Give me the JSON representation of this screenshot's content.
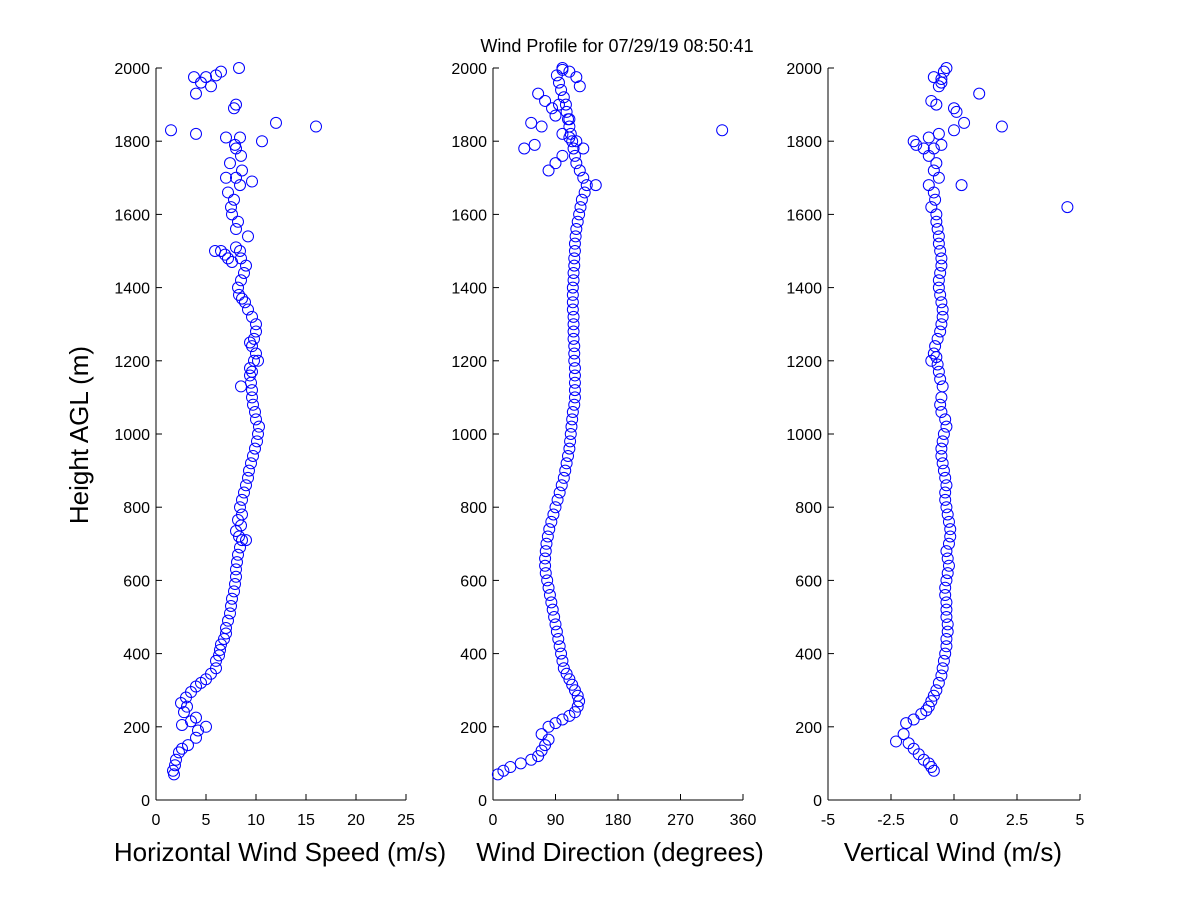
{
  "title": "Wind Profile for  07/29/19 08:50:41",
  "marker_color": "#0000ff",
  "chart_data": [
    {
      "type": "scatter",
      "xlabel": "Horizontal Wind Speed (m/s)",
      "ylabel": "Height AGL (m)",
      "xlim": [
        0,
        25
      ],
      "ylim": [
        0,
        2000
      ],
      "xticks": [
        0,
        5,
        10,
        15,
        20,
        25
      ],
      "xtick_labels": [
        "0",
        "5",
        "10",
        "15",
        "20",
        "25"
      ],
      "yticks": [
        0,
        200,
        400,
        600,
        800,
        1000,
        1200,
        1400,
        1600,
        1800,
        2000
      ],
      "ytick_labels": [
        "0",
        "200",
        "400",
        "600",
        "800",
        "1000",
        "1200",
        "1400",
        "1600",
        "1800",
        "2000"
      ],
      "grid": false,
      "x": [
        1.8,
        1.7,
        1.9,
        2.0,
        2.3,
        2.6,
        3.2,
        4.0,
        4.2,
        2.6,
        5.0,
        3.5,
        4.0,
        2.8,
        3.1,
        2.5,
        3.0,
        3.5,
        4.0,
        4.5,
        5.0,
        5.5,
        6.0,
        6.0,
        6.3,
        6.4,
        6.5,
        6.8,
        7.0,
        7.0,
        7.2,
        7.4,
        7.5,
        7.6,
        7.8,
        7.9,
        8.0,
        8.0,
        8.1,
        8.2,
        8.4,
        8.6,
        8.3,
        8.0,
        9.0,
        8.5,
        8.2,
        8.6,
        8.4,
        8.6,
        8.8,
        9.0,
        9.2,
        9.3,
        9.5,
        9.7,
        9.9,
        10.1,
        10.2,
        10.3,
        10.0,
        9.9,
        9.7,
        9.6,
        9.6,
        9.5,
        9.4,
        9.4,
        8.5,
        9.6,
        9.8,
        10.2,
        10.0,
        9.6,
        9.4,
        9.8,
        10.0,
        10.0,
        9.6,
        9.2,
        8.9,
        8.6,
        8.3,
        8.2,
        8.5,
        8.8,
        9.0,
        8.5,
        8.4,
        7.6,
        7.2,
        6.9,
        6.5,
        5.9,
        8.0,
        9.2,
        8.0,
        8.2,
        7.6,
        7.5,
        7.8,
        7.2,
        8.4,
        8.0,
        7.4,
        8.6,
        9.6,
        7.0,
        8.5,
        8.0,
        7.9,
        8.4,
        7.0,
        10.6,
        4.0,
        1.5,
        12.0,
        16.0,
        8.0,
        7.8,
        4.0,
        4.5,
        5.0,
        6.0,
        5.5,
        3.8,
        6.5,
        8.3
      ],
      "y": [
        70,
        80,
        95,
        110,
        130,
        140,
        150,
        170,
        190,
        205,
        200,
        215,
        225,
        240,
        255,
        265,
        280,
        295,
        310,
        320,
        330,
        345,
        360,
        380,
        395,
        410,
        425,
        440,
        455,
        470,
        490,
        510,
        530,
        550,
        570,
        590,
        610,
        630,
        650,
        670,
        690,
        710,
        720,
        735,
        710,
        750,
        765,
        780,
        800,
        820,
        840,
        860,
        880,
        900,
        920,
        940,
        960,
        980,
        1000,
        1020,
        1040,
        1060,
        1080,
        1100,
        1120,
        1140,
        1160,
        1180,
        1130,
        1170,
        1200,
        1200,
        1220,
        1240,
        1250,
        1260,
        1280,
        1300,
        1320,
        1340,
        1360,
        1370,
        1380,
        1400,
        1420,
        1440,
        1460,
        1480,
        1500,
        1470,
        1480,
        1490,
        1500,
        1500,
        1510,
        1540,
        1560,
        1580,
        1600,
        1620,
        1640,
        1660,
        1680,
        1700,
        1740,
        1720,
        1690,
        1700,
        1760,
        1780,
        1790,
        1810,
        1810,
        1800,
        1820,
        1830,
        1850,
        1840,
        1900,
        1890,
        1930,
        1960,
        1975,
        1980,
        1950,
        1975,
        1990,
        2000
      ]
    },
    {
      "type": "scatter",
      "xlabel": "Wind Direction (degrees)",
      "ylabel": "",
      "xlim": [
        0,
        360
      ],
      "ylim": [
        0,
        2000
      ],
      "xticks": [
        0,
        90,
        180,
        270,
        360
      ],
      "xtick_labels": [
        "0",
        "90",
        "180",
        "270",
        "360"
      ],
      "yticks": [
        0,
        200,
        400,
        600,
        800,
        1000,
        1200,
        1400,
        1600,
        1800,
        2000
      ],
      "ytick_labels": [
        "0",
        "200",
        "400",
        "600",
        "800",
        "1000",
        "1200",
        "1400",
        "1600",
        "1800",
        "2000"
      ],
      "grid": false,
      "x": [
        7,
        15,
        25,
        40,
        55,
        65,
        70,
        75,
        80,
        70,
        80,
        90,
        100,
        110,
        118,
        122,
        124,
        122,
        118,
        114,
        110,
        106,
        102,
        100,
        98,
        96,
        94,
        92,
        90,
        88,
        86,
        84,
        82,
        80,
        78,
        76,
        75,
        75,
        76,
        77,
        79,
        81,
        84,
        87,
        90,
        93,
        96,
        99,
        102,
        104,
        106,
        108,
        110,
        111,
        112,
        113,
        114,
        115,
        117,
        118,
        118,
        118,
        118,
        118,
        117,
        117,
        117,
        116,
        116,
        116,
        116,
        115,
        115,
        115,
        115,
        116,
        116,
        117,
        117,
        118,
        118,
        119,
        120,
        122,
        124,
        126,
        128,
        132,
        135,
        130,
        125,
        120,
        118,
        116,
        114,
        112,
        110,
        108,
        106,
        105,
        102,
        98,
        95,
        92,
        100,
        110,
        120,
        125,
        100,
        90,
        80,
        60,
        45,
        70,
        330,
        100,
        110,
        120,
        130,
        148,
        95,
        85,
        75,
        65,
        55,
        110,
        90,
        100
      ],
      "y": [
        70,
        80,
        90,
        100,
        110,
        120,
        135,
        150,
        165,
        180,
        200,
        210,
        220,
        230,
        240,
        255,
        270,
        285,
        300,
        315,
        330,
        345,
        360,
        380,
        400,
        420,
        440,
        460,
        480,
        500,
        520,
        540,
        560,
        580,
        600,
        620,
        640,
        660,
        680,
        700,
        720,
        740,
        760,
        780,
        800,
        820,
        840,
        860,
        880,
        900,
        920,
        940,
        960,
        980,
        1000,
        1020,
        1040,
        1060,
        1080,
        1100,
        1120,
        1140,
        1160,
        1180,
        1200,
        1220,
        1240,
        1260,
        1280,
        1300,
        1320,
        1340,
        1360,
        1380,
        1400,
        1420,
        1440,
        1460,
        1480,
        1500,
        1520,
        1540,
        1560,
        1580,
        1600,
        1620,
        1640,
        1660,
        1680,
        1700,
        1720,
        1740,
        1760,
        1780,
        1800,
        1820,
        1840,
        1860,
        1880,
        1900,
        1920,
        1940,
        1960,
        1980,
        2000,
        1990,
        1975,
        1950,
        1760,
        1740,
        1720,
        1790,
        1780,
        1840,
        1830,
        1820,
        1810,
        1800,
        1780,
        1680,
        1900,
        1890,
        1910,
        1930,
        1850,
        1860,
        1870,
        1995
      ]
    },
    {
      "type": "scatter",
      "xlabel": "Vertical Wind (m/s)",
      "ylabel": "",
      "xlim": [
        -5,
        5
      ],
      "ylim": [
        0,
        2000
      ],
      "xticks": [
        -5,
        -2.5,
        0,
        2.5,
        5
      ],
      "xtick_labels": [
        "-5",
        "-2.5",
        "0",
        "2.5",
        "5"
      ],
      "yticks": [
        0,
        200,
        400,
        600,
        800,
        1000,
        1200,
        1400,
        1600,
        1800,
        2000
      ],
      "ytick_labels": [
        "0",
        "200",
        "400",
        "600",
        "800",
        "1000",
        "1200",
        "1400",
        "1600",
        "1800",
        "2000"
      ],
      "grid": false,
      "x": [
        -0.8,
        -0.9,
        -1.0,
        -1.2,
        -1.4,
        -1.6,
        -1.8,
        -2.0,
        -2.3,
        -1.9,
        -1.6,
        -1.3,
        -1.1,
        -1.0,
        -0.9,
        -0.8,
        -0.7,
        -0.6,
        -0.5,
        -0.45,
        -0.4,
        -0.35,
        -0.3,
        -0.3,
        -0.25,
        -0.25,
        -0.3,
        -0.3,
        -0.3,
        -0.35,
        -0.35,
        -0.3,
        -0.25,
        -0.2,
        -0.25,
        -0.3,
        -0.2,
        -0.15,
        -0.15,
        -0.2,
        -0.25,
        -0.3,
        -0.35,
        -0.35,
        -0.3,
        -0.35,
        -0.4,
        -0.45,
        -0.5,
        -0.5,
        -0.45,
        -0.4,
        -0.3,
        -0.35,
        -0.5,
        -0.55,
        -0.5,
        -0.45,
        -0.55,
        -0.6,
        -0.65,
        -0.7,
        -0.8,
        -0.9,
        -0.75,
        -0.65,
        -0.55,
        -0.5,
        -0.45,
        -0.45,
        -0.5,
        -0.55,
        -0.6,
        -0.6,
        -0.55,
        -0.5,
        -0.5,
        -0.55,
        -0.6,
        -0.6,
        -0.65,
        -0.7,
        -0.7,
        -0.75,
        -0.8,
        -0.9,
        -1.0,
        -0.6,
        0.3,
        4.5,
        -0.8,
        -0.7,
        -1.0,
        -1.2,
        -0.8,
        -0.5,
        -1.5,
        -1.6,
        -1.0,
        -0.6,
        0.0,
        0.4,
        1.9,
        0.1,
        0.0,
        -0.7,
        -0.9,
        1.0,
        -0.6,
        -0.5,
        -0.4,
        -0.8,
        -0.3,
        -0.5
      ],
      "y": [
        80,
        90,
        100,
        110,
        125,
        140,
        155,
        180,
        160,
        210,
        220,
        235,
        245,
        255,
        270,
        285,
        300,
        320,
        340,
        360,
        380,
        400,
        420,
        440,
        460,
        480,
        500,
        520,
        540,
        560,
        580,
        600,
        620,
        640,
        660,
        680,
        700,
        720,
        740,
        760,
        780,
        800,
        820,
        840,
        860,
        880,
        900,
        920,
        940,
        960,
        980,
        1000,
        1020,
        1040,
        1060,
        1080,
        1100,
        1130,
        1150,
        1170,
        1190,
        1210,
        1220,
        1200,
        1240,
        1260,
        1280,
        1300,
        1320,
        1340,
        1360,
        1380,
        1400,
        1420,
        1440,
        1460,
        1480,
        1500,
        1520,
        1540,
        1560,
        1580,
        1600,
        1640,
        1660,
        1620,
        1680,
        1700,
        1680,
        1620,
        1720,
        1740,
        1760,
        1780,
        1780,
        1790,
        1790,
        1800,
        1810,
        1820,
        1830,
        1850,
        1840,
        1880,
        1890,
        1900,
        1910,
        1930,
        1950,
        1970,
        1990,
        1975,
        2000,
        1960
      ]
    }
  ]
}
